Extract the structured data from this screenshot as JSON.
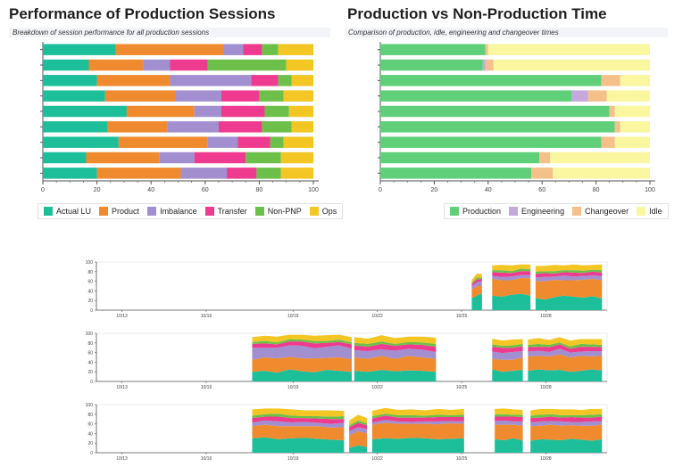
{
  "left_panel": {
    "title": "Performance of Production Sessions",
    "subtitle": "Breakdown of session performance for all production sessions"
  },
  "right_panel": {
    "title": "Production vs Non-Production Time",
    "subtitle": "Comparison of production, idle, engineering and changeover times"
  },
  "colors": {
    "actual_lu": "#1dbf9b",
    "product": "#f08a2e",
    "imbalance": "#a18fcf",
    "transfer": "#ef3b8f",
    "non_pnp": "#6cc04a",
    "ops": "#f3c623",
    "production": "#5fcf7a",
    "engineering": "#c5a8dc",
    "changeover": "#f5c08a",
    "idle": "#fbf6a0"
  },
  "chart_data": [
    {
      "type": "bar",
      "orientation": "horizontal-stacked",
      "title": "Performance of Production Sessions",
      "xlim": [
        0,
        100
      ],
      "xticks": [
        "0",
        "20",
        "40",
        "60",
        "80",
        "100"
      ],
      "legend_position": "bottom-left",
      "series": [
        {
          "name": "Actual LU",
          "color": "#1dbf9b",
          "values": [
            27,
            17,
            20,
            23,
            31,
            24,
            28,
            16,
            20
          ]
        },
        {
          "name": "Product",
          "color": "#f08a2e",
          "values": [
            40,
            20,
            27,
            26,
            25,
            22,
            33,
            27,
            31
          ]
        },
        {
          "name": "Imbalance",
          "color": "#a18fcf",
          "values": [
            7,
            10,
            30,
            17,
            10,
            19,
            11,
            13,
            17
          ]
        },
        {
          "name": "Transfer",
          "color": "#ef3b8f",
          "values": [
            7,
            14,
            10,
            14,
            16,
            16,
            12,
            19,
            11
          ]
        },
        {
          "name": "Non-PNP",
          "color": "#6cc04a",
          "values": [
            6,
            29,
            5,
            9,
            9,
            11,
            5,
            13,
            9
          ]
        },
        {
          "name": "Ops",
          "color": "#f3c623",
          "values": [
            13,
            10,
            8,
            11,
            9,
            8,
            11,
            12,
            12
          ]
        }
      ]
    },
    {
      "type": "bar",
      "orientation": "horizontal-stacked",
      "title": "Production vs Non-Production Time",
      "xlim": [
        0,
        100
      ],
      "xticks": [
        "0",
        "20",
        "40",
        "60",
        "80",
        "100"
      ],
      "legend_position": "bottom-right",
      "series": [
        {
          "name": "Production",
          "color": "#5fcf7a",
          "values": [
            39,
            38,
            82,
            71,
            85,
            87,
            82,
            59,
            56
          ]
        },
        {
          "name": "Engineering",
          "color": "#c5a8dc",
          "values": [
            0,
            1,
            0,
            6,
            0,
            0,
            0,
            0,
            0
          ]
        },
        {
          "name": "Changeover",
          "color": "#f5c08a",
          "values": [
            1,
            3,
            7,
            7,
            2,
            2,
            5,
            4,
            8
          ]
        },
        {
          "name": "Idle",
          "color": "#fbf6a0",
          "values": [
            60,
            58,
            11,
            16,
            13,
            11,
            13,
            37,
            36
          ]
        }
      ]
    },
    {
      "type": "area",
      "stacked": true,
      "ylim": [
        0,
        100
      ],
      "yticks": [
        "0",
        "20",
        "40",
        "60",
        "80",
        "100"
      ],
      "xticks": [
        "10/13",
        "10/16",
        "10/19",
        "10/22",
        "10/25",
        "10/28"
      ],
      "segments": [
        {
          "x": [
            0.735,
            0.755
          ],
          "values": [
            [
              25,
              30,
              35
            ],
            [
              18,
              20,
              15
            ],
            [
              6,
              8,
              10
            ],
            [
              5,
              6,
              5
            ],
            [
              3,
              4,
              3
            ],
            [
              6,
              8,
              7
            ]
          ]
        },
        {
          "x": [
            0.775,
            0.85
          ],
          "values": [
            [
              30,
              28,
              32,
              34,
              30
            ],
            [
              35,
              34,
              30,
              33,
              36
            ],
            [
              6,
              7,
              8,
              6,
              7
            ],
            [
              8,
              9,
              7,
              8,
              8
            ],
            [
              4,
              5,
              4,
              5,
              4
            ],
            [
              10,
              11,
              12,
              9,
              10
            ]
          ]
        },
        {
          "x": [
            0.86,
            0.99
          ],
          "values": [
            [
              25,
              22,
              27,
              30,
              28,
              26,
              29,
              24
            ],
            [
              35,
              38,
              36,
              32,
              34,
              37,
              36,
              38
            ],
            [
              8,
              9,
              7,
              10,
              8,
              8,
              7,
              9
            ],
            [
              7,
              8,
              6,
              7,
              8,
              6,
              8,
              7
            ],
            [
              5,
              4,
              5,
              4,
              5,
              5,
              4,
              5
            ],
            [
              12,
              11,
              13,
              10,
              12,
              11,
              10,
              12
            ]
          ]
        }
      ]
    },
    {
      "type": "area",
      "stacked": true,
      "ylim": [
        0,
        100
      ],
      "yticks": [
        "0",
        "20",
        "40",
        "60",
        "80",
        "100"
      ],
      "xticks": [
        "10/13",
        "10/16",
        "10/19",
        "10/22",
        "10/25",
        "10/28"
      ],
      "segments": [
        {
          "x": [
            0.305,
            0.5
          ],
          "values": [
            [
              20,
              22,
              18,
              25,
              21,
              19,
              24,
              22,
              20
            ],
            [
              25,
              28,
              30,
              26,
              27,
              29,
              25,
              28,
              26
            ],
            [
              25,
              20,
              22,
              24,
              26,
              21,
              23,
              25,
              22
            ],
            [
              8,
              9,
              7,
              8,
              9,
              10,
              8,
              7,
              9
            ],
            [
              4,
              5,
              4,
              5,
              4,
              5,
              4,
              5,
              4
            ],
            [
              10,
              11,
              12,
              9,
              10,
              11,
              12,
              10,
              11
            ]
          ]
        },
        {
          "x": [
            0.505,
            0.665
          ],
          "values": [
            [
              22,
              20,
              24,
              21,
              23,
              22,
              20
            ],
            [
              28,
              27,
              29,
              26,
              30,
              28,
              27
            ],
            [
              15,
              16,
              14,
              17,
              15,
              16,
              14
            ],
            [
              10,
              9,
              11,
              10,
              9,
              10,
              11
            ],
            [
              5,
              6,
              5,
              4,
              5,
              5,
              6
            ],
            [
              12,
              11,
              13,
              12,
              11,
              12,
              13
            ]
          ]
        },
        {
          "x": [
            0.775,
            0.835
          ],
          "values": [
            [
              25,
              20,
              22,
              24
            ],
            [
              22,
              25,
              23,
              26
            ],
            [
              15,
              14,
              16,
              13
            ],
            [
              10,
              11,
              9,
              10
            ],
            [
              5,
              4,
              5,
              5
            ],
            [
              12,
              11,
              12,
              10
            ]
          ]
        },
        {
          "x": [
            0.845,
            0.99
          ],
          "values": [
            [
              22,
              25,
              23,
              24,
              20,
              22,
              25,
              23
            ],
            [
              30,
              28,
              29,
              32,
              30,
              31,
              27,
              30
            ],
            [
              10,
              11,
              9,
              12,
              10,
              9,
              11,
              10
            ],
            [
              9,
              8,
              10,
              9,
              8,
              10,
              9,
              8
            ],
            [
              5,
              6,
              5,
              4,
              5,
              6,
              5,
              5
            ],
            [
              11,
              12,
              10,
              11,
              12,
              10,
              11,
              12
            ]
          ]
        }
      ]
    },
    {
      "type": "area",
      "stacked": true,
      "ylim": [
        0,
        100
      ],
      "yticks": [
        "0",
        "20",
        "40",
        "60",
        "80",
        "100"
      ],
      "xticks": [
        "10/13",
        "10/16",
        "10/19",
        "10/22",
        "10/25",
        "10/28"
      ],
      "segments": [
        {
          "x": [
            0.305,
            0.485
          ],
          "values": [
            [
              30,
              32,
              28,
              30,
              31,
              29,
              27,
              26
            ],
            [
              25,
              26,
              27,
              25,
              24,
              26,
              25,
              27
            ],
            [
              8,
              9,
              10,
              8,
              9,
              7,
              8,
              9
            ],
            [
              9,
              8,
              10,
              9,
              8,
              9,
              10,
              8
            ],
            [
              5,
              5,
              6,
              5,
              4,
              5,
              5,
              6
            ],
            [
              13,
              12,
              11,
              13,
              12,
              12,
              13,
              11
            ]
          ]
        },
        {
          "x": [
            0.495,
            0.53
          ],
          "values": [
            [
              10,
              15,
              12
            ],
            [
              25,
              30,
              28
            ],
            [
              10,
              8,
              9
            ],
            [
              8,
              9,
              8
            ],
            [
              4,
              5,
              4
            ],
            [
              10,
              12,
              11
            ]
          ]
        },
        {
          "x": [
            0.54,
            0.72
          ],
          "values": [
            [
              28,
              30,
              29,
              31,
              30,
              28,
              29,
              30
            ],
            [
              30,
              32,
              31,
              29,
              30,
              31,
              32,
              30
            ],
            [
              5,
              6,
              5,
              4,
              5,
              6,
              5,
              5
            ],
            [
              8,
              9,
              8,
              9,
              8,
              9,
              8,
              9
            ],
            [
              5,
              4,
              5,
              5,
              4,
              5,
              4,
              5
            ],
            [
              11,
              12,
              11,
              12,
              11,
              12,
              11,
              12
            ]
          ]
        },
        {
          "x": [
            0.78,
            0.835
          ],
          "values": [
            [
              28,
              26,
              30,
              25
            ],
            [
              30,
              32,
              28,
              31
            ],
            [
              8,
              9,
              7,
              9
            ],
            [
              9,
              8,
              10,
              9
            ],
            [
              5,
              5,
              4,
              5
            ],
            [
              11,
              12,
              11,
              10
            ]
          ]
        },
        {
          "x": [
            0.85,
            0.99
          ],
          "values": [
            [
              25,
              28,
              27,
              26,
              29,
              27,
              25,
              28
            ],
            [
              30,
              28,
              31,
              30,
              28,
              29,
              31,
              30
            ],
            [
              8,
              9,
              8,
              9,
              7,
              8,
              9,
              8
            ],
            [
              9,
              8,
              9,
              8,
              10,
              9,
              8,
              9
            ],
            [
              5,
              6,
              5,
              5,
              4,
              5,
              6,
              5
            ],
            [
              11,
              12,
              11,
              12,
              12,
              11,
              12,
              11
            ]
          ]
        }
      ]
    }
  ]
}
